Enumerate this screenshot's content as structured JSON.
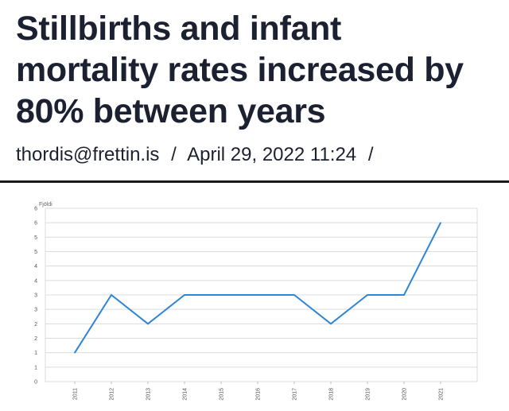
{
  "article": {
    "headline_lines": [
      "Stillbirths and infant",
      "mortality rates increased by",
      "80% between years"
    ],
    "author_email": "thordis@frettin.is",
    "separator": "/",
    "date": "April 29, 2022 11:24"
  },
  "chart_data": {
    "type": "line",
    "title": "",
    "ylabel": "Fjöldi",
    "xlabel": "",
    "x": [
      "2011",
      "2012",
      "2013",
      "2014",
      "2015",
      "2016",
      "2017",
      "2018",
      "2019",
      "2020",
      "2021"
    ],
    "series": [
      {
        "values": [
          1,
          3,
          2,
          3,
          3,
          3,
          3,
          2,
          3,
          3,
          5.5
        ]
      }
    ],
    "y_tick_labels": [
      "0",
      "1",
      "1",
      "2",
      "2",
      "3",
      "3",
      "4",
      "4",
      "5",
      "5",
      "6",
      "6"
    ],
    "ylim": [
      0,
      6
    ],
    "grid": true,
    "line_color": "#2f86d6",
    "grid_color": "#dcdcdc"
  }
}
